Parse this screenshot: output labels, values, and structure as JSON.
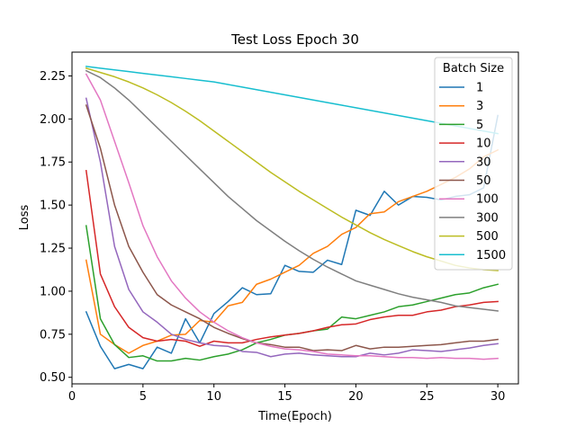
{
  "chart_data": {
    "type": "line",
    "title": "Test Loss Epoch 30",
    "xlabel": "Time(Epoch)",
    "ylabel": "Loss",
    "xlim": [
      0,
      31.45
    ],
    "ylim": [
      0.462,
      2.388
    ],
    "xticks": [
      0,
      5,
      10,
      15,
      20,
      25,
      30
    ],
    "yticks": [
      0.5,
      0.75,
      1.0,
      1.25,
      1.5,
      1.75,
      2.0,
      2.25
    ],
    "ytick_labels": [
      "0.50",
      "0.75",
      "1.00",
      "1.25",
      "1.50",
      "1.75",
      "2.00",
      "2.25"
    ],
    "grid": false,
    "legend": {
      "title": "Batch Size",
      "position": "top-right"
    },
    "x": [
      1,
      2,
      3,
      4,
      5,
      6,
      7,
      8,
      9,
      10,
      11,
      12,
      13,
      14,
      15,
      16,
      17,
      18,
      19,
      20,
      21,
      22,
      23,
      24,
      25,
      26,
      27,
      28,
      29,
      30
    ],
    "series": [
      {
        "name": "1",
        "color": "#1f77b4",
        "values": [
          0.88,
          0.68,
          0.55,
          0.575,
          0.55,
          0.675,
          0.64,
          0.84,
          0.7,
          0.87,
          0.94,
          1.02,
          0.98,
          0.985,
          1.15,
          1.115,
          1.11,
          1.18,
          1.155,
          1.47,
          1.44,
          1.58,
          1.5,
          1.55,
          1.545,
          1.53,
          1.55,
          1.56,
          1.6,
          2.02
        ]
      },
      {
        "name": "3",
        "color": "#ff7f0e",
        "values": [
          1.18,
          0.75,
          0.69,
          0.64,
          0.685,
          0.71,
          0.745,
          0.75,
          0.83,
          0.82,
          0.915,
          0.935,
          1.04,
          1.07,
          1.11,
          1.15,
          1.22,
          1.26,
          1.33,
          1.37,
          1.45,
          1.46,
          1.52,
          1.55,
          1.58,
          1.62,
          1.66,
          1.71,
          1.78,
          1.82
        ]
      },
      {
        "name": "5",
        "color": "#2ca02c",
        "values": [
          1.38,
          0.84,
          0.69,
          0.615,
          0.625,
          0.595,
          0.595,
          0.61,
          0.6,
          0.62,
          0.635,
          0.66,
          0.7,
          0.72,
          0.745,
          0.755,
          0.77,
          0.78,
          0.85,
          0.84,
          0.86,
          0.88,
          0.91,
          0.92,
          0.94,
          0.96,
          0.98,
          0.99,
          1.02,
          1.04
        ]
      },
      {
        "name": "10",
        "color": "#d62728",
        "values": [
          1.7,
          1.1,
          0.91,
          0.79,
          0.73,
          0.71,
          0.72,
          0.71,
          0.68,
          0.71,
          0.7,
          0.7,
          0.72,
          0.735,
          0.745,
          0.755,
          0.77,
          0.79,
          0.805,
          0.81,
          0.835,
          0.85,
          0.86,
          0.86,
          0.88,
          0.89,
          0.91,
          0.92,
          0.935,
          0.94
        ]
      },
      {
        "name": "30",
        "color": "#9467bd",
        "values": [
          2.12,
          1.75,
          1.26,
          1.01,
          0.88,
          0.82,
          0.75,
          0.72,
          0.7,
          0.685,
          0.68,
          0.65,
          0.645,
          0.62,
          0.635,
          0.64,
          0.63,
          0.625,
          0.62,
          0.62,
          0.64,
          0.63,
          0.64,
          0.66,
          0.655,
          0.65,
          0.66,
          0.67,
          0.685,
          0.695
        ]
      },
      {
        "name": "50",
        "color": "#8c564b",
        "values": [
          2.08,
          1.83,
          1.5,
          1.26,
          1.11,
          0.98,
          0.92,
          0.88,
          0.84,
          0.79,
          0.755,
          0.725,
          0.7,
          0.69,
          0.675,
          0.675,
          0.655,
          0.66,
          0.655,
          0.685,
          0.665,
          0.675,
          0.675,
          0.68,
          0.685,
          0.69,
          0.7,
          0.71,
          0.71,
          0.72
        ]
      },
      {
        "name": "100",
        "color": "#e377c2",
        "values": [
          2.26,
          2.11,
          1.87,
          1.63,
          1.38,
          1.2,
          1.06,
          0.96,
          0.88,
          0.82,
          0.77,
          0.73,
          0.7,
          0.68,
          0.665,
          0.66,
          0.65,
          0.635,
          0.63,
          0.625,
          0.625,
          0.62,
          0.615,
          0.615,
          0.61,
          0.615,
          0.61,
          0.61,
          0.605,
          0.61
        ]
      },
      {
        "name": "300",
        "color": "#7f7f7f",
        "values": [
          2.28,
          2.24,
          2.18,
          2.11,
          2.03,
          1.95,
          1.87,
          1.79,
          1.71,
          1.63,
          1.55,
          1.48,
          1.41,
          1.35,
          1.29,
          1.235,
          1.185,
          1.14,
          1.1,
          1.06,
          1.035,
          1.01,
          0.985,
          0.965,
          0.95,
          0.935,
          0.915,
          0.905,
          0.895,
          0.885
        ]
      },
      {
        "name": "500",
        "color": "#bcbd22",
        "values": [
          2.295,
          2.27,
          2.245,
          2.215,
          2.18,
          2.14,
          2.095,
          2.045,
          1.99,
          1.93,
          1.87,
          1.81,
          1.75,
          1.69,
          1.635,
          1.58,
          1.53,
          1.48,
          1.43,
          1.385,
          1.34,
          1.3,
          1.265,
          1.23,
          1.2,
          1.175,
          1.15,
          1.135,
          1.125,
          1.12
        ]
      },
      {
        "name": "1500",
        "color": "#17becf",
        "values": [
          2.305,
          2.295,
          2.285,
          2.275,
          2.265,
          2.255,
          2.245,
          2.235,
          2.225,
          2.215,
          2.2,
          2.185,
          2.17,
          2.155,
          2.14,
          2.125,
          2.11,
          2.095,
          2.08,
          2.065,
          2.05,
          2.035,
          2.02,
          2.005,
          1.99,
          1.975,
          1.96,
          1.945,
          1.93,
          1.915
        ]
      }
    ]
  }
}
